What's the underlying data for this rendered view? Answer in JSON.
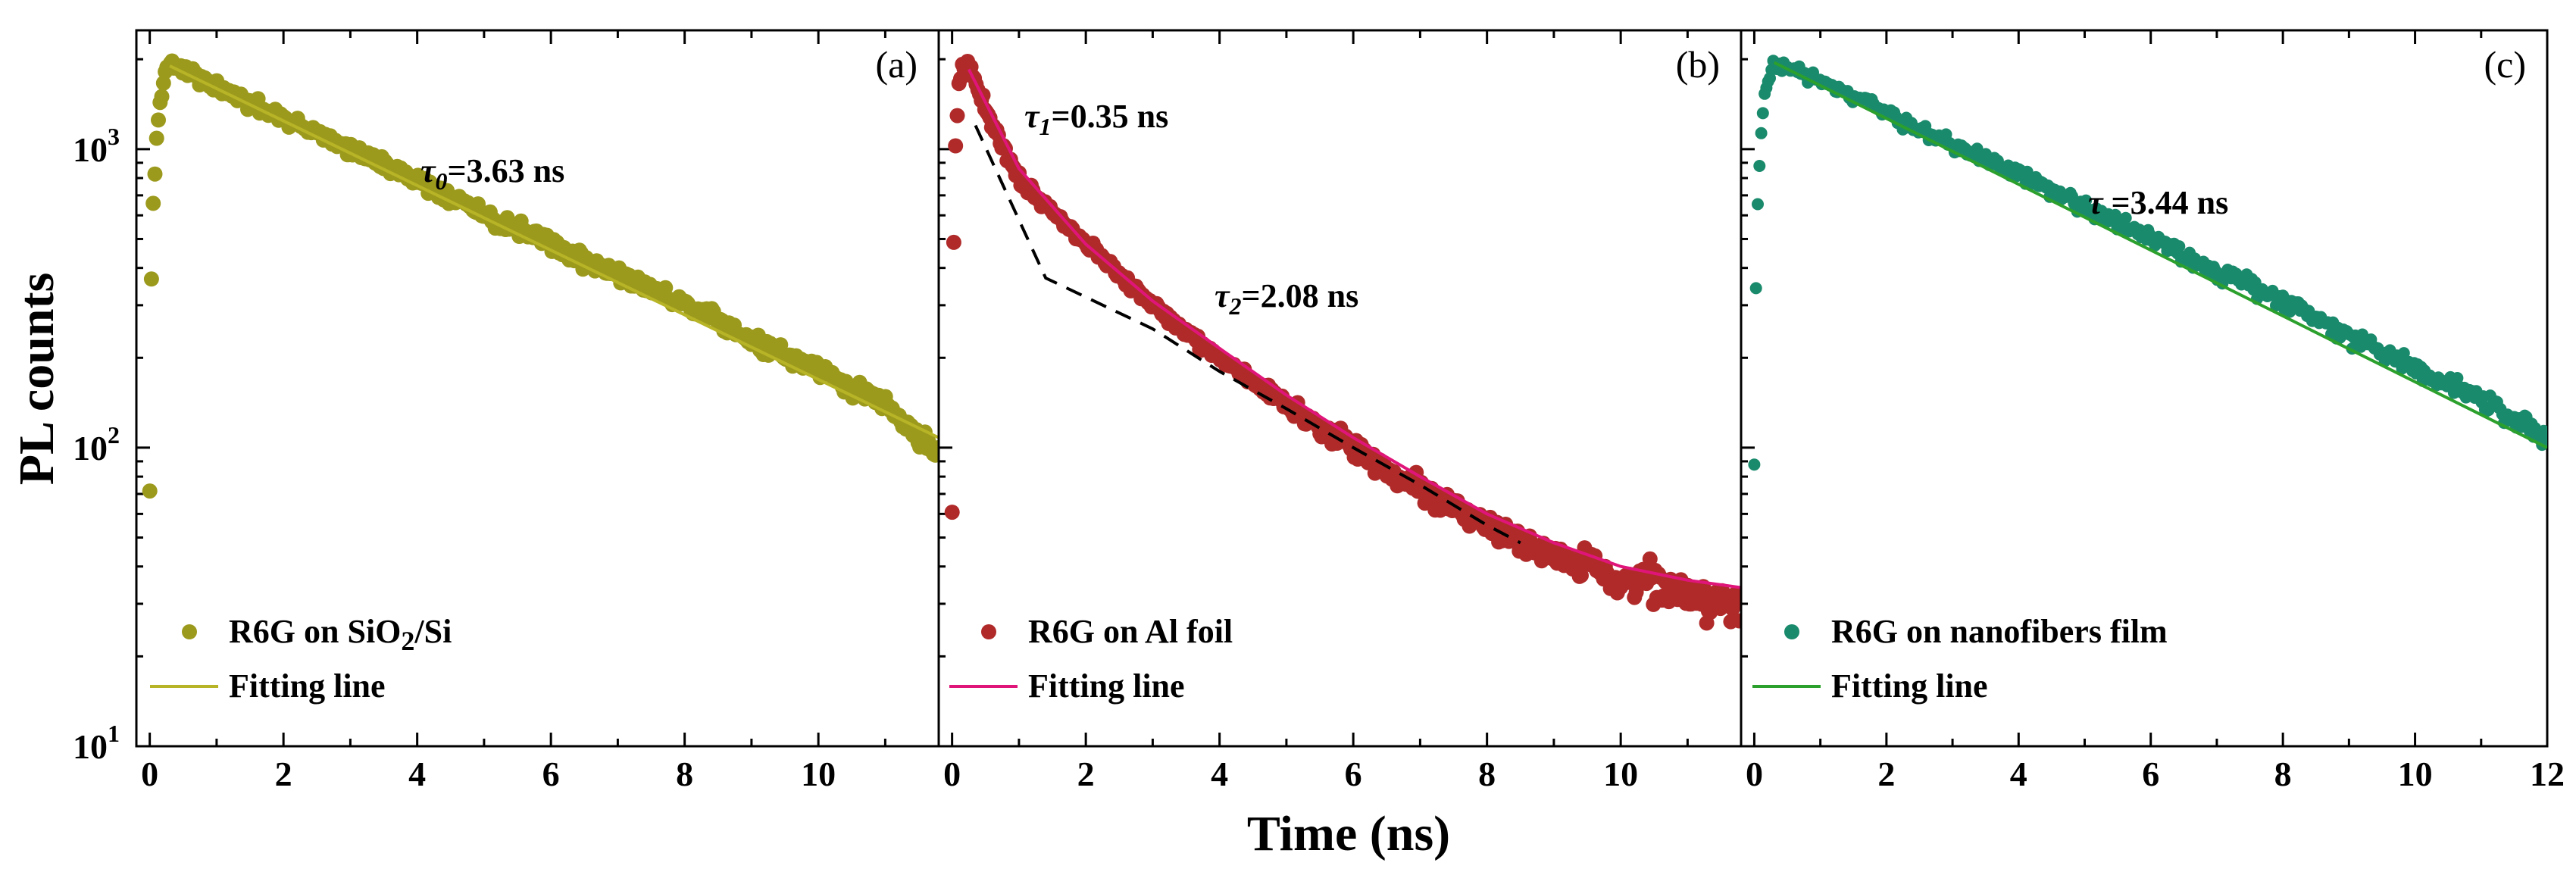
{
  "figure": {
    "ylabel": "PL counts",
    "xlabel": "Time (ns)"
  },
  "chart_data": [
    {
      "panel": "(a)",
      "type": "scatter",
      "xlim": [
        -0.2,
        11.8
      ],
      "ylim": [
        10,
        2500
      ],
      "yscale": "log",
      "xticks": [
        0,
        2,
        4,
        6,
        8,
        10
      ],
      "yticks": [
        {
          "value": 10,
          "base": "10",
          "exp": "1"
        },
        {
          "value": 100,
          "base": "10",
          "exp": "2"
        },
        {
          "value": 1000,
          "base": "10",
          "exp": "3"
        }
      ],
      "annotations": [
        {
          "pre": "τ",
          "sub": "0",
          "post": "=3.63 ns"
        }
      ],
      "legend": [
        {
          "marker": "circle",
          "label": "R6G on SiO",
          "sub": "2",
          "suffix": "/Si"
        },
        {
          "marker": "line",
          "label": "Fitting line"
        }
      ],
      "colors": {
        "points": "#9c9a1c",
        "fit": "#b8b427"
      },
      "series": [
        {
          "name": "R6G on SiO2/Si",
          "kind": "points",
          "x": [
            0.0,
            0.02,
            0.05,
            0.1,
            0.15,
            0.25,
            0.35,
            0.5,
            1,
            2,
            3,
            4,
            5,
            6,
            7,
            8,
            9,
            10,
            11,
            11.8
          ],
          "y": [
            75,
            340,
            650,
            1050,
            1500,
            1850,
            1950,
            1850,
            1600,
            1260,
            1000,
            790,
            600,
            480,
            380,
            300,
            230,
            180,
            140,
            95
          ]
        },
        {
          "name": "Fitting line",
          "kind": "fit",
          "x": [
            0.3,
            11.8
          ],
          "y": [
            1900,
            108
          ],
          "tau_ns": 3.63
        }
      ]
    },
    {
      "panel": "(b)",
      "type": "scatter",
      "xlim": [
        -0.2,
        11.8
      ],
      "ylim": [
        10,
        2500
      ],
      "yscale": "log",
      "xticks": [
        0,
        2,
        4,
        6,
        8,
        10
      ],
      "yticks": [],
      "annotations": [
        {
          "pre": "τ",
          "sub": "1",
          "post": "=0.35 ns"
        },
        {
          "pre": "τ",
          "sub": "2",
          "post": "=2.08 ns"
        }
      ],
      "legend": [
        {
          "marker": "circle",
          "label": "R6G on Al foil"
        },
        {
          "marker": "line",
          "label": "Fitting line"
        }
      ],
      "colors": {
        "points": "#b02a2a",
        "fit": "#e0157a"
      },
      "series": [
        {
          "name": "R6G on Al foil",
          "kind": "points",
          "x": [
            0.0,
            0.02,
            0.05,
            0.1,
            0.15,
            0.2,
            0.3,
            0.5,
            1,
            2,
            3,
            4,
            5,
            6,
            7,
            8,
            9,
            10,
            11,
            11.8
          ],
          "y": [
            60,
            420,
            1000,
            1600,
            1850,
            1900,
            1800,
            1350,
            800,
            480,
            300,
            200,
            140,
            100,
            72,
            55,
            44,
            37,
            32,
            30
          ]
        },
        {
          "name": "Fitting line",
          "kind": "fit",
          "x": [
            0.25,
            1,
            2,
            3,
            4,
            5,
            6,
            7,
            8,
            9,
            10,
            11,
            11.8
          ],
          "y": [
            1850,
            860,
            480,
            310,
            215,
            150,
            108,
            80,
            60,
            48,
            40,
            36,
            34
          ]
        },
        {
          "name": "Component fits",
          "kind": "dashed",
          "x": [
            0.35,
            1.4,
            3,
            4,
            5,
            6,
            7,
            8,
            8.5
          ],
          "y": [
            1200,
            370,
            250,
            180,
            135,
            100,
            75,
            55,
            48
          ]
        }
      ]
    },
    {
      "panel": "(c)",
      "type": "scatter",
      "xlim": [
        -0.2,
        12
      ],
      "ylim": [
        10,
        2500
      ],
      "yscale": "log",
      "xticks": [
        0,
        2,
        4,
        6,
        8,
        10,
        12
      ],
      "yticks": [],
      "annotations": [
        {
          "pre": "τ",
          "post": " =3.44 ns"
        }
      ],
      "legend": [
        {
          "marker": "circle",
          "label": "R6G on nanofibers film"
        },
        {
          "marker": "line",
          "label": "Fitting line"
        }
      ],
      "colors": {
        "points": "#1a8a6c",
        "fit": "#2ca02c"
      },
      "series": [
        {
          "name": "R6G on nanofibers film",
          "kind": "points",
          "x": [
            0.0,
            0.02,
            0.05,
            0.1,
            0.15,
            0.25,
            0.35,
            0.5,
            1,
            2,
            3,
            4,
            5,
            6,
            7,
            8,
            9,
            10,
            11,
            12
          ],
          "y": [
            85,
            300,
            650,
            1050,
            1500,
            1850,
            1950,
            1870,
            1680,
            1320,
            1030,
            820,
            640,
            500,
            390,
            310,
            240,
            185,
            145,
            108
          ]
        },
        {
          "name": "Fitting line",
          "kind": "fit",
          "x": [
            0.3,
            12
          ],
          "y": [
            1950,
            100
          ],
          "tau_ns": 3.44
        }
      ]
    }
  ]
}
